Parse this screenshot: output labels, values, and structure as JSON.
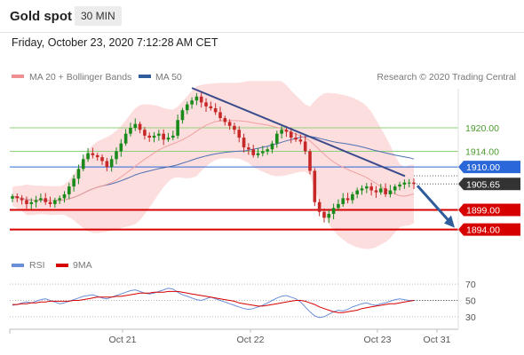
{
  "header": {
    "title": "Gold spot",
    "timeframe": "30 MIN",
    "datetime": "Friday, October 23, 2020 7:12:28 AM CET"
  },
  "legend": {
    "ma20_bb": "MA 20 + Bollinger Bands",
    "ma50": "MA 50",
    "copyright": "Research © 2020 Trading Central",
    "rsi": "RSI",
    "rsi_ma": "9MA"
  },
  "colors": {
    "up_candle": "#1a8a1a",
    "down_candle": "#c62828",
    "bollinger_fill": "#fbd3d3",
    "ma20": "#f0a0a0",
    "ma50": "#4d6fb0",
    "trendline": "#3a4b8c",
    "resistance": "#8fd17a",
    "pivot": "#2a67d8",
    "support": "#d60000",
    "price_badge": "#333333",
    "rsi": "#6a8fd8",
    "rsi_ma": "#d60000",
    "arrow": "#2f5c9a"
  },
  "chart_data": [
    {
      "type": "candlestick",
      "title": "Gold spot",
      "ylim": [
        1888,
        1930
      ],
      "x_ticks": [
        "Oct 21",
        "Oct 22",
        "Oct 23",
        "Oct 31"
      ],
      "current_price": "1905.65",
      "levels": [
        {
          "label": "1920.00",
          "value": 1920.0,
          "kind": "resistance"
        },
        {
          "label": "1914.00",
          "value": 1914.0,
          "kind": "resistance"
        },
        {
          "label": "1910.00",
          "value": 1910.0,
          "kind": "pivot"
        },
        {
          "label": "1899.00",
          "value": 1899.0,
          "kind": "support"
        },
        {
          "label": "1894.00",
          "value": 1894.0,
          "kind": "support"
        }
      ],
      "close": [
        1902.5,
        1902.0,
        1901.5,
        1900.5,
        1901.0,
        1901.5,
        1902.0,
        1901.0,
        1900.5,
        1901.5,
        1902.0,
        1903.0,
        1905.0,
        1907.0,
        1909.5,
        1912.0,
        1913.5,
        1913.0,
        1912.5,
        1911.5,
        1910.0,
        1912.0,
        1914.0,
        1916.0,
        1918.5,
        1920.0,
        1921.0,
        1919.5,
        1918.0,
        1917.5,
        1918.0,
        1918.5,
        1917.0,
        1917.5,
        1918.0,
        1922.0,
        1924.5,
        1926.0,
        1927.0,
        1928.0,
        1926.5,
        1925.5,
        1925.0,
        1924.0,
        1922.5,
        1921.5,
        1920.5,
        1919.5,
        1917.5,
        1915.0,
        1914.5,
        1913.0,
        1913.5,
        1914.0,
        1914.5,
        1916.0,
        1918.5,
        1919.5,
        1919.0,
        1917.5,
        1917.0,
        1916.5,
        1914.0,
        1909.0,
        1901.0,
        1898.5,
        1897.0,
        1898.0,
        1899.5,
        1900.5,
        1902.0,
        1901.5,
        1903.0,
        1904.0,
        1904.5,
        1905.0,
        1904.0,
        1903.5,
        1904.5,
        1903.0,
        1904.0,
        1905.0,
        1905.5,
        1906.0,
        1906.0,
        1905.65
      ],
      "rsi": {
        "ylim": [
          20,
          80
        ],
        "ticks": [
          70,
          50,
          30
        ],
        "rsi": [
          44,
          45,
          47,
          48,
          47,
          49,
          51,
          52,
          50,
          48,
          46,
          47,
          49,
          51,
          53,
          55,
          56,
          57,
          55,
          53,
          52,
          54,
          56,
          58,
          60,
          62,
          63,
          61,
          59,
          58,
          59,
          61,
          63,
          65,
          64,
          60,
          57,
          55,
          53,
          51,
          50,
          52,
          54,
          52,
          50,
          48,
          46,
          44,
          42,
          40,
          39,
          40,
          42,
          44,
          47,
          50,
          53,
          55,
          56,
          54,
          52,
          48,
          42,
          36,
          31,
          29,
          30,
          33,
          36,
          38,
          37,
          39,
          42,
          44,
          46,
          47,
          45,
          44,
          46,
          47,
          49,
          51,
          52,
          51,
          50,
          50
        ],
        "ma9": [
          45,
          45,
          46,
          46,
          47,
          47,
          48,
          48,
          49,
          49,
          49,
          49,
          49,
          50,
          50,
          51,
          52,
          53,
          54,
          54,
          54,
          54,
          55,
          55,
          56,
          57,
          58,
          59,
          59,
          59,
          60,
          60,
          60,
          61,
          61,
          61,
          60,
          59,
          58,
          57,
          56,
          55,
          54,
          53,
          52,
          51,
          50,
          49,
          47,
          46,
          45,
          44,
          43,
          43,
          44,
          45,
          46,
          47,
          48,
          49,
          50,
          50,
          49,
          47,
          45,
          42,
          40,
          38,
          36,
          35,
          35,
          36,
          37,
          38,
          40,
          41,
          42,
          43,
          44,
          45,
          46,
          46,
          47,
          48,
          49,
          50
        ]
      }
    }
  ]
}
